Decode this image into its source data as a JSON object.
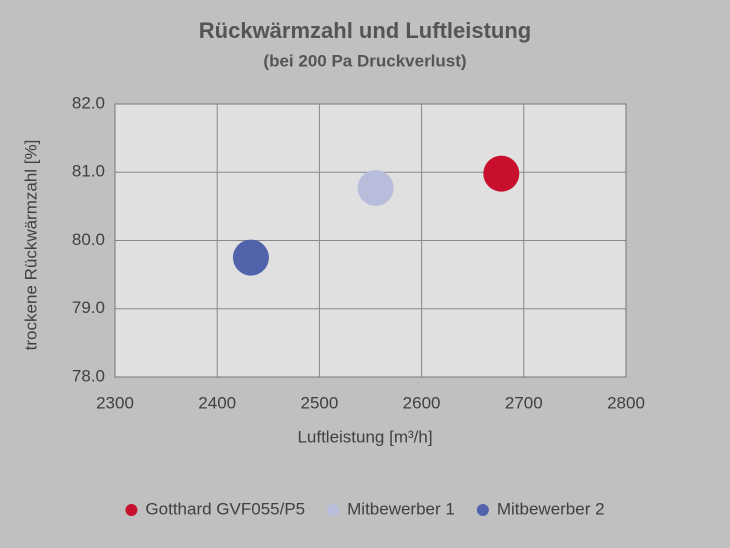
{
  "chart_data": {
    "type": "scatter",
    "title": "Rückwärmzahl und Luftleistung",
    "subtitle": "(bei 200 Pa Druckverlust)",
    "x_label": "Luftleistung [m³/h]",
    "y_label": "trockene Rückwärmzahl [%]",
    "xlim": [
      2300,
      2800
    ],
    "xticks": [
      2300,
      2400,
      2500,
      2600,
      2700,
      2800
    ],
    "ylim": [
      78,
      82
    ],
    "yticks": [
      {
        "value": 78,
        "label": "78.0"
      },
      {
        "value": 79,
        "label": "79.0"
      },
      {
        "value": 80,
        "label": "80.0"
      },
      {
        "value": 81,
        "label": "81.0"
      },
      {
        "value": 82,
        "label": "82.0"
      }
    ],
    "grid": true,
    "legend": "bottom",
    "series": [
      {
        "name": "Gotthard GVF055/P5",
        "color": "#c8102e",
        "x": [
          2678
        ],
        "values": [
          80.98
        ]
      },
      {
        "name": "Mitbewerber 1",
        "color": "#b9bddc",
        "x": [
          2555
        ],
        "values": [
          80.77
        ]
      },
      {
        "name": "Mitbewerber 2",
        "color": "#5164ab",
        "x": [
          2433
        ],
        "values": [
          79.75
        ]
      }
    ]
  }
}
